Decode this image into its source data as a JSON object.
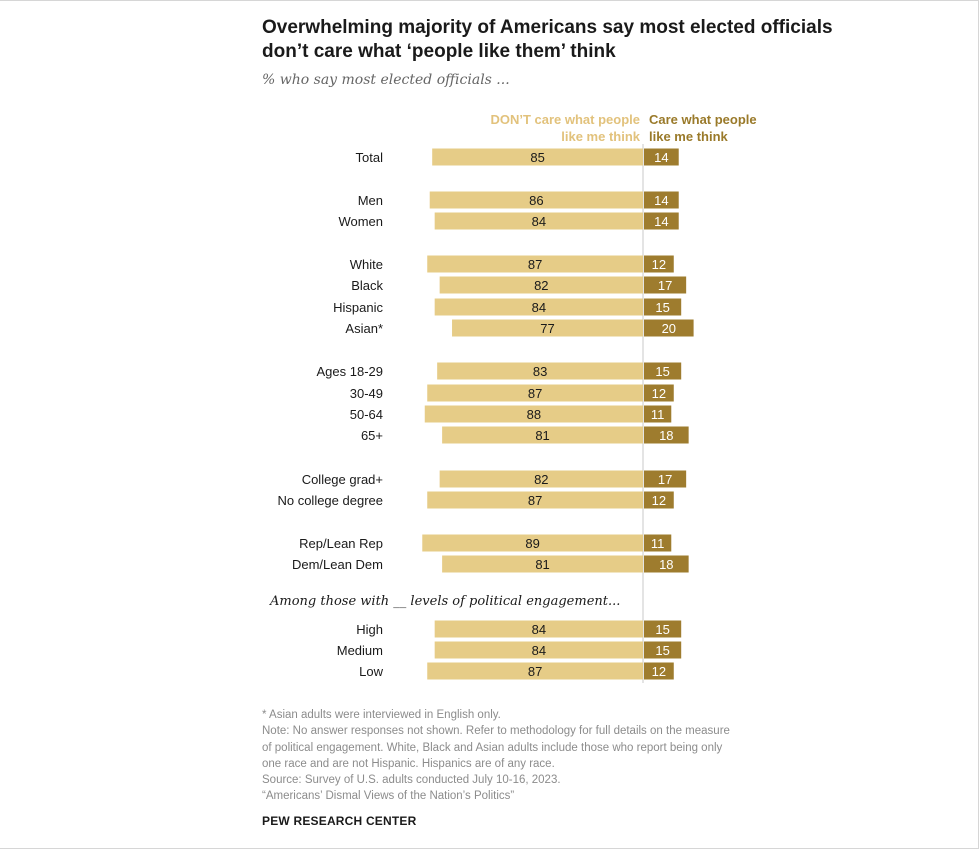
{
  "chart_data": {
    "type": "bar",
    "orientation": "horizontal-diverging",
    "title": "Overwhelming majority of Americans say most elected officials don’t care what ‘people like them’ think",
    "subtitle": "% who say most elected officials ...",
    "series": [
      {
        "name": "DON’T care what people like me think",
        "color": "#e6cc87",
        "label_color": "#e2c27c"
      },
      {
        "name": "Care what people like me think",
        "color": "#9e7c2e",
        "label_color": "#9a7a2a"
      }
    ],
    "section_note": "Among those with __ levels of political engagement...",
    "rows": [
      {
        "label": "Total",
        "dont": 85,
        "care": 14
      },
      {
        "label": "Men",
        "dont": 86,
        "care": 14
      },
      {
        "label": "Women",
        "dont": 84,
        "care": 14
      },
      {
        "label": "White",
        "dont": 87,
        "care": 12
      },
      {
        "label": "Black",
        "dont": 82,
        "care": 17
      },
      {
        "label": "Hispanic",
        "dont": 84,
        "care": 15
      },
      {
        "label": "Asian*",
        "dont": 77,
        "care": 20
      },
      {
        "label": "Ages 18-29",
        "dont": 83,
        "care": 15
      },
      {
        "label": "30-49",
        "dont": 87,
        "care": 12
      },
      {
        "label": "50-64",
        "dont": 88,
        "care": 11
      },
      {
        "label": "65+",
        "dont": 81,
        "care": 18
      },
      {
        "label": "College grad+",
        "dont": 82,
        "care": 17
      },
      {
        "label": "No college degree",
        "dont": 87,
        "care": 12
      },
      {
        "label": "Rep/Lean Rep",
        "dont": 89,
        "care": 11
      },
      {
        "label": "Dem/Lean Dem",
        "dont": 81,
        "care": 18
      },
      {
        "label": "High",
        "dont": 84,
        "care": 15
      },
      {
        "label": "Medium",
        "dont": 84,
        "care": 15
      },
      {
        "label": "Low",
        "dont": 87,
        "care": 12
      }
    ]
  },
  "footnotes": {
    "asian": "* Asian adults were interviewed in English only.",
    "note_lines": [
      "Note: No answer responses not shown. Refer to methodology for full details on the measure",
      "of political engagement. White, Black and Asian adults include those who report being only",
      "one race and are not Hispanic. Hispanics are of any race."
    ],
    "source": "Source: Survey of U.S. adults conducted July 10-16, 2023.",
    "report": "“Americans’ Dismal Views of the Nation’s Politics”"
  },
  "brand": "PEW RESEARCH CENTER"
}
